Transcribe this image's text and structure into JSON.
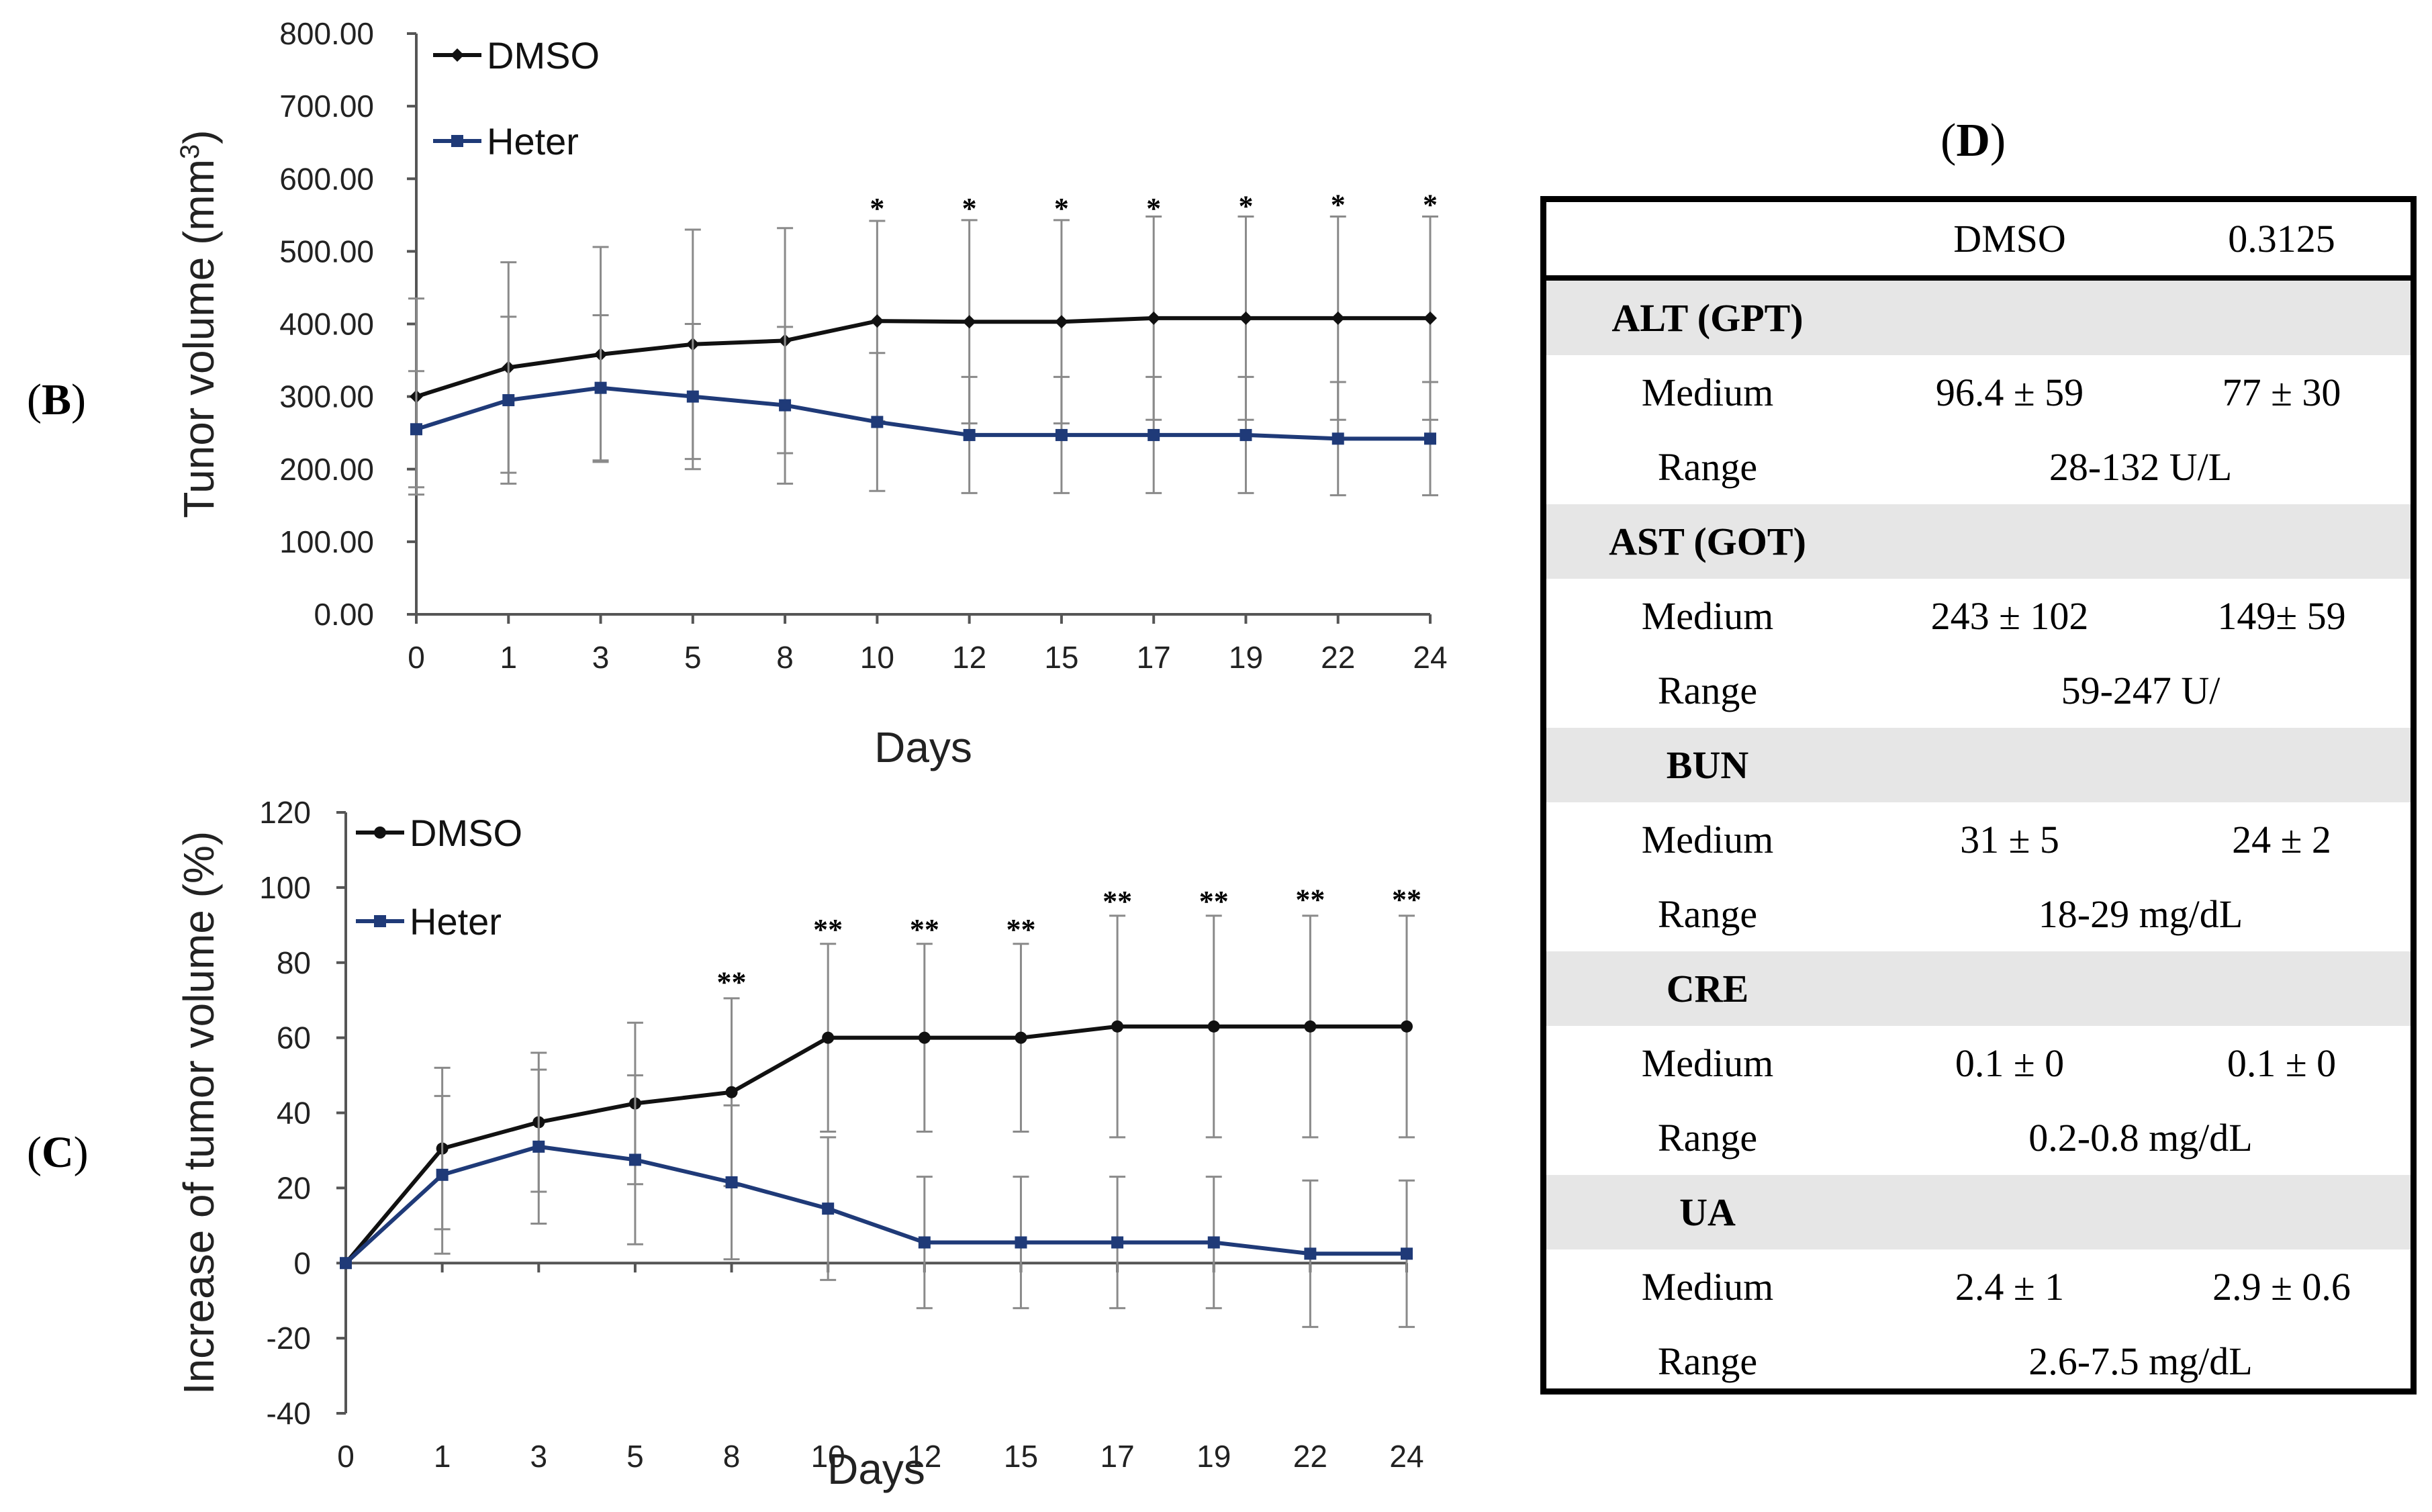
{
  "panel_labels": {
    "b": "B",
    "c": "C",
    "d": "D"
  },
  "colors": {
    "dmso": "#111111",
    "heter": "#1f3a78",
    "error_bar": "#8a8a8a",
    "star": "#000000"
  },
  "chart_data": [
    {
      "id": "B",
      "type": "line",
      "ylabel": "Tunor volume (mm",
      "ylabel_superscript": "3",
      "ylabel_close": ")",
      "xlabel": "Days",
      "ylim": [
        0,
        800
      ],
      "yticks": [
        "0.00",
        "100.00",
        "200.00",
        "300.00",
        "400.00",
        "500.00",
        "600.00",
        "700.00",
        "800.00"
      ],
      "categories": [
        "0",
        "1",
        "3",
        "5",
        "8",
        "10",
        "12",
        "15",
        "17",
        "19",
        "22",
        "24"
      ],
      "legend": [
        "DMSO",
        "Heter"
      ],
      "series": [
        {
          "name": "DMSO",
          "marker": "diamond",
          "values": [
            300,
            340,
            358,
            372,
            377,
            404,
            403,
            403,
            408,
            408,
            408,
            408
          ],
          "error": [
            135,
            145,
            148,
            158,
            155,
            138,
            140,
            140,
            140,
            140,
            140,
            140
          ]
        },
        {
          "name": "Heter",
          "marker": "square",
          "values": [
            255,
            295,
            312,
            300,
            288,
            265,
            247,
            247,
            247,
            247,
            242,
            242
          ],
          "error": [
            80,
            115,
            100,
            100,
            108,
            95,
            80,
            80,
            80,
            80,
            78,
            78
          ]
        }
      ],
      "significance": [
        {
          "category": "10",
          "label": "*",
          "value": 555
        },
        {
          "category": "12",
          "label": "*",
          "value": 555
        },
        {
          "category": "15",
          "label": "*",
          "value": 555
        },
        {
          "category": "17",
          "label": "*",
          "value": 555
        },
        {
          "category": "19",
          "label": "*",
          "value": 558
        },
        {
          "category": "22",
          "label": "*",
          "value": 560
        },
        {
          "category": "24",
          "label": "*",
          "value": 560
        }
      ]
    },
    {
      "id": "C",
      "type": "line",
      "ylabel": "Increase of tumor volume (%)",
      "xlabel": "Days",
      "ylim": [
        -40,
        120
      ],
      "yticks": [
        "-40",
        "-20",
        "0",
        "20",
        "40",
        "60",
        "80",
        "100",
        "120"
      ],
      "categories": [
        "0",
        "1",
        "3",
        "5",
        "8",
        "10",
        "12",
        "15",
        "17",
        "19",
        "22",
        "24"
      ],
      "legend": [
        "DMSO",
        "Heter"
      ],
      "series": [
        {
          "name": "DMSO",
          "marker": "circle",
          "values": [
            0,
            30.5,
            37.5,
            42.5,
            45.5,
            60,
            60,
            60,
            63,
            63,
            63,
            63
          ],
          "error": [
            0,
            21.5,
            18.5,
            21.5,
            25,
            25,
            25,
            25,
            29.5,
            29.5,
            29.5,
            29.5
          ]
        },
        {
          "name": "Heter",
          "marker": "square",
          "values": [
            0,
            23.5,
            31,
            27.5,
            21.5,
            14.5,
            5.5,
            5.5,
            5.5,
            5.5,
            2.5,
            2.5
          ],
          "error": [
            0,
            21,
            20.5,
            22.5,
            20.5,
            19,
            17.5,
            17.5,
            17.5,
            17.5,
            19.5,
            19.5
          ]
        }
      ],
      "significance": [
        {
          "category": "8",
          "label": "**",
          "value": 74
        },
        {
          "category": "10",
          "label": "**",
          "value": 88
        },
        {
          "category": "12",
          "label": "**",
          "value": 88
        },
        {
          "category": "15",
          "label": "**",
          "value": 88
        },
        {
          "category": "17",
          "label": "**",
          "value": 95.5
        },
        {
          "category": "19",
          "label": "**",
          "value": 95.5
        },
        {
          "category": "22",
          "label": "**",
          "value": 96
        },
        {
          "category": "24",
          "label": "**",
          "value": 96
        }
      ]
    }
  ],
  "table": {
    "title": "D",
    "header": {
      "col1": "DMSO",
      "col2": "0.3125"
    },
    "sections": [
      {
        "name": "ALT (GPT)",
        "medium_label": "Medium",
        "medium_dmso": "96.4 ± 59",
        "medium_heter": "77 ± 30",
        "range_label": "Range",
        "range": "28-132 U/L"
      },
      {
        "name": "AST (GOT)",
        "medium_label": "Medium",
        "medium_dmso": "243 ± 102",
        "medium_heter": "149± 59",
        "range_label": "Range",
        "range": "59-247 U/"
      },
      {
        "name": "BUN",
        "medium_label": "Medium",
        "medium_dmso": "31 ± 5",
        "medium_heter": "24 ± 2",
        "range_label": "Range",
        "range": "18-29 mg/dL"
      },
      {
        "name": "CRE",
        "medium_label": "Medium",
        "medium_dmso": "0.1 ± 0",
        "medium_heter": "0.1 ± 0",
        "range_label": "Range",
        "range": "0.2-0.8 mg/dL"
      },
      {
        "name": "UA",
        "medium_label": "Medium",
        "medium_dmso": "2.4 ± 1",
        "medium_heter": "2.9 ± 0.6",
        "range_label": "Range",
        "range": "2.6-7.5 mg/dL"
      }
    ]
  }
}
